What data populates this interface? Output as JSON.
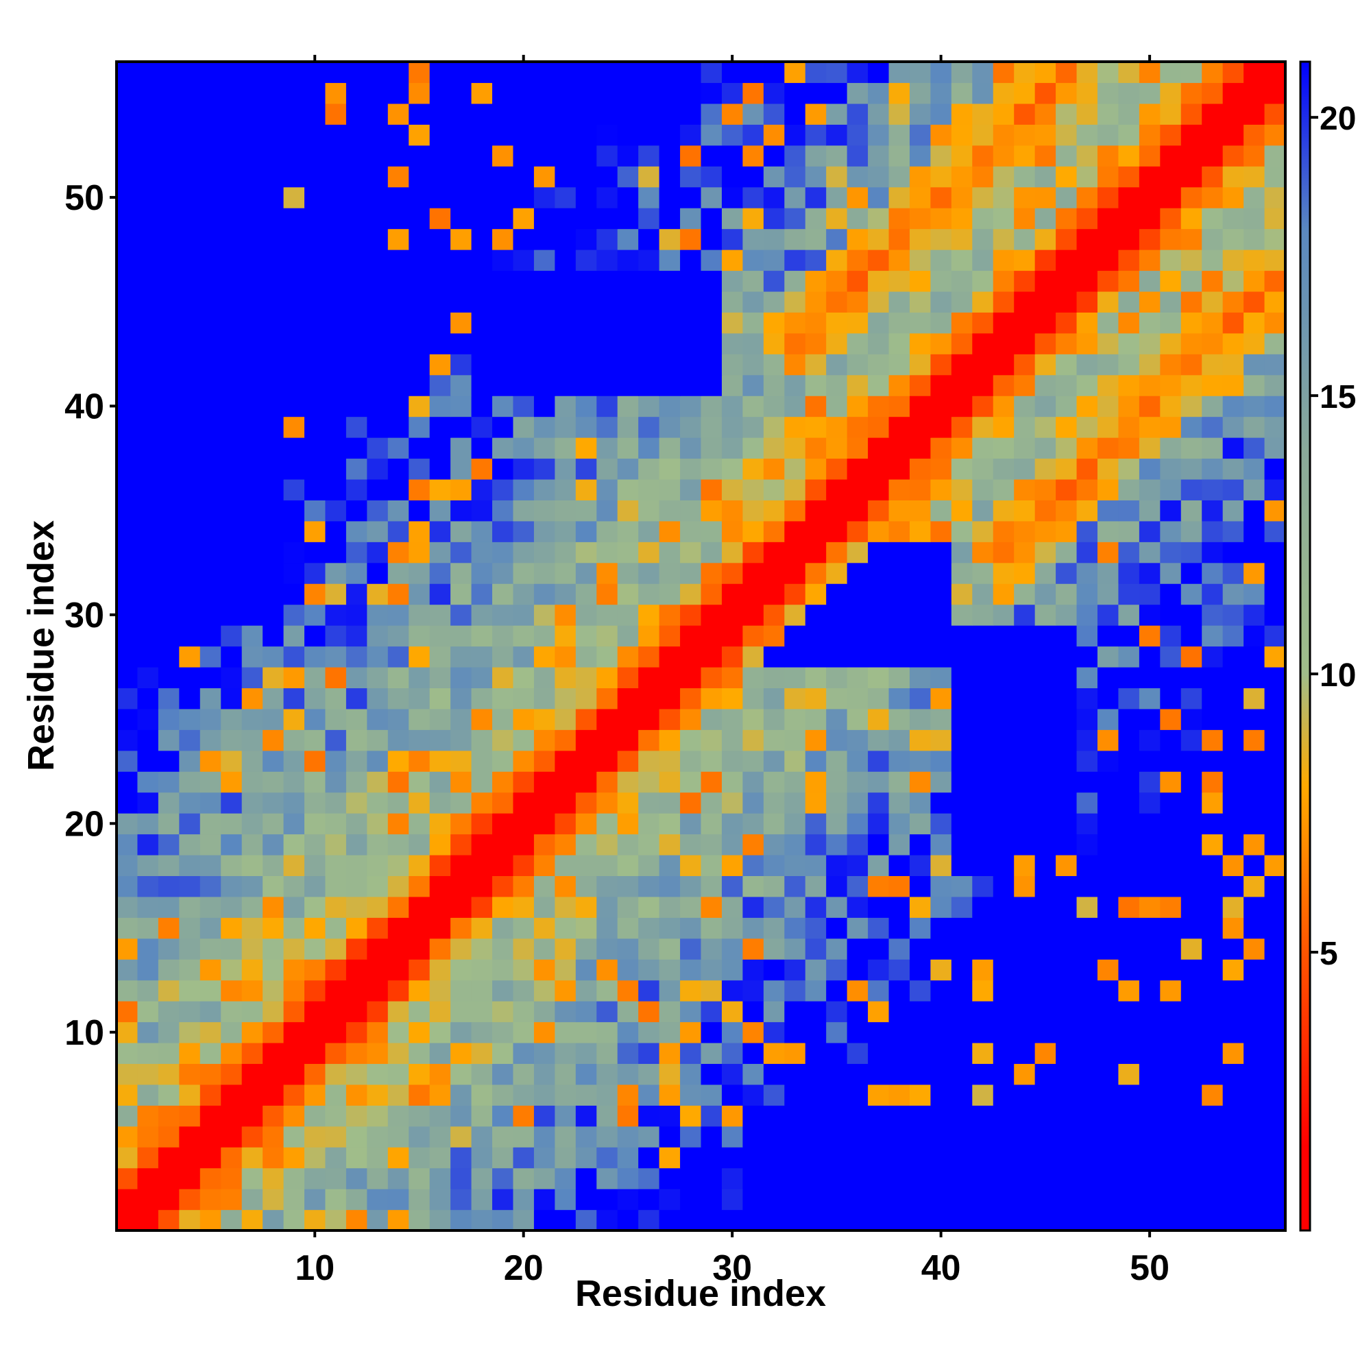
{
  "chart_data": {
    "type": "heatmap",
    "title": "",
    "xlabel": "Residue index",
    "ylabel": "Residue index",
    "x_ticks": [
      10,
      20,
      30,
      40,
      50
    ],
    "y_ticks": [
      10,
      20,
      30,
      40,
      50
    ],
    "xlim": [
      1,
      56
    ],
    "ylim": [
      1,
      56
    ],
    "n_residues": 56,
    "colorbar": {
      "ticks": [
        5,
        10,
        15,
        20
      ],
      "range": [
        0,
        21
      ],
      "stops": [
        {
          "value": 1.5,
          "color": "#ff0000"
        },
        {
          "value": 5,
          "color": "#ff5500"
        },
        {
          "value": 8,
          "color": "#ffaa00"
        },
        {
          "value": 10,
          "color": "#a0bd8a"
        },
        {
          "value": 14,
          "color": "#8aaa9a"
        },
        {
          "value": 18,
          "color": "#5a88c0"
        },
        {
          "value": 21,
          "color": "#0000ff"
        }
      ],
      "cap_color": "#0000ff"
    },
    "model": {
      "description": "Distance-like symmetric matrix; red along the diagonal, orange bands, far contacts blue.",
      "secondary_bands": [
        {
          "i_range": [
            37,
            56
          ],
          "j_range": [
            31,
            52
          ],
          "offset_center": 11,
          "depth": 6
        },
        {
          "i_range": [
            5,
            30
          ],
          "j_range": [
            1,
            26
          ],
          "offset_center": 3,
          "depth": 3
        }
      ],
      "blue_blocks": [
        {
          "i": [
            1,
            8
          ],
          "j": [
            30,
            56
          ]
        },
        {
          "i": [
            31,
            56
          ],
          "j": [
            1,
            6
          ]
        },
        {
          "i": [
            1,
            6
          ],
          "j": [
            31,
            56
          ]
        },
        {
          "i": [
            19,
            29
          ],
          "j": [
            41,
            46
          ]
        },
        {
          "i": [
            41,
            46
          ],
          "j": [
            19,
            29
          ]
        },
        {
          "i": [
            30,
            40
          ],
          "j": [
            28,
            33
          ]
        }
      ]
    }
  }
}
